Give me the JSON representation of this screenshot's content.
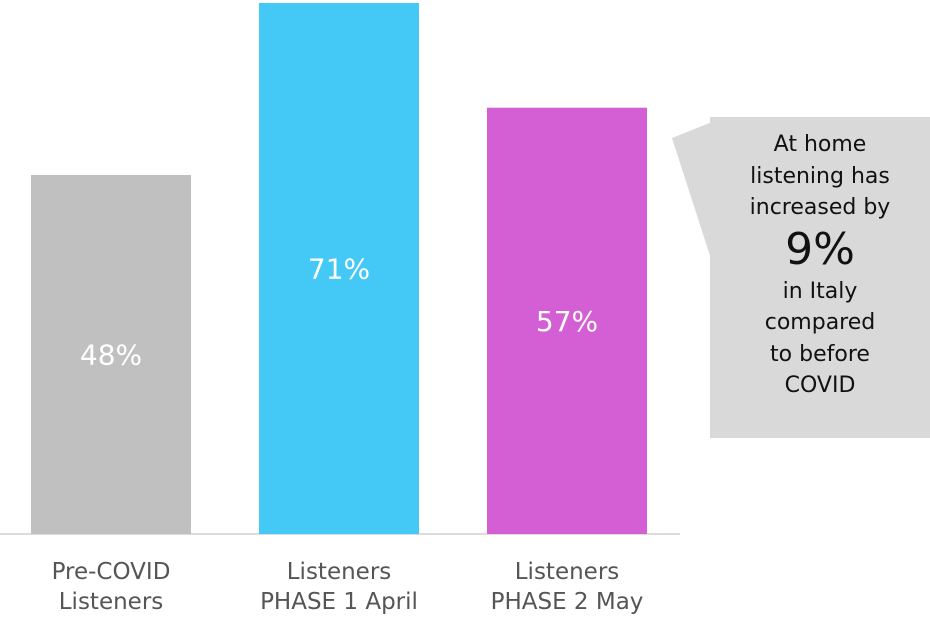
{
  "chart_data": {
    "type": "bar",
    "categories": [
      "Pre-COVID\nListeners",
      "Listeners\nPHASE 1 April",
      "Listeners\nPHASE 2 May"
    ],
    "values": [
      48,
      71,
      57
    ],
    "value_labels": [
      "48%",
      "71%",
      "57%"
    ],
    "colors": [
      "#c0c0c0",
      "#44c8f5",
      "#d45fd4"
    ],
    "label_color": "#ffffff",
    "grid": false,
    "ylim": [
      0,
      71
    ]
  },
  "callout": {
    "lines_top": [
      "At home",
      "listening has",
      "increased by"
    ],
    "highlight": "9%",
    "lines_bottom": [
      "in Italy",
      "compared",
      "to before",
      "COVID"
    ],
    "background": "#d9d9d9"
  }
}
